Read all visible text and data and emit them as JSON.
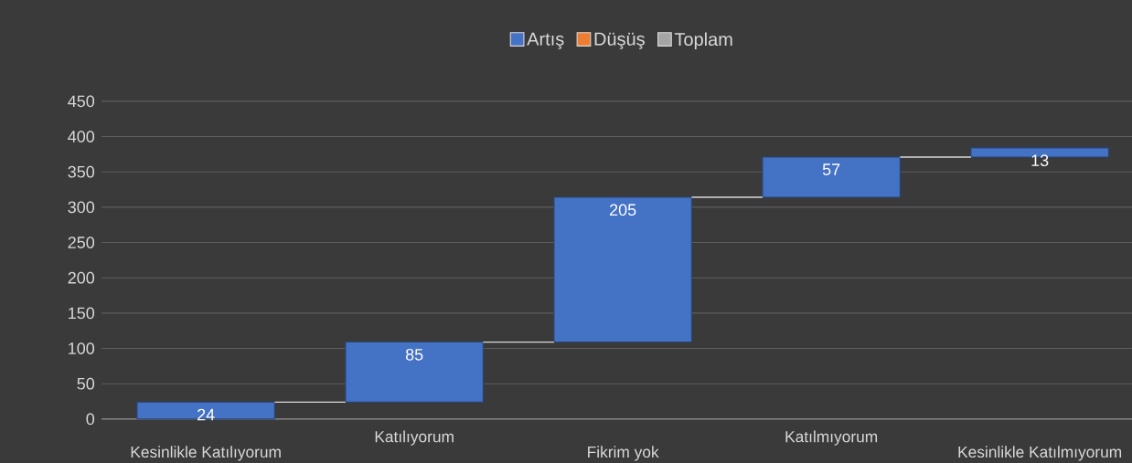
{
  "chart_data": {
    "type": "bar",
    "categories": [
      "Kesinlikle Katılıyorum",
      "Katılıyorum",
      "Fikrim yok",
      "Katılmıyorum",
      "Kesinlikle Katılmıyorum"
    ],
    "series": [
      {
        "name": "Artış",
        "color": "#4472c4",
        "values": [
          24,
          85,
          205,
          57,
          13
        ],
        "base": [
          0,
          24,
          109,
          314,
          371
        ]
      },
      {
        "name": "Düşüş",
        "color": "#ed7d31",
        "values": [
          null,
          null,
          null,
          null,
          null
        ]
      },
      {
        "name": "Toplam",
        "color": "#a5a5a5",
        "values": [
          null,
          null,
          null,
          null,
          null
        ]
      }
    ],
    "ylim": [
      0,
      450
    ],
    "yticks": [
      0,
      50,
      100,
      150,
      200,
      250,
      300,
      350,
      400,
      450
    ],
    "grid": "y",
    "legend": "top",
    "data_labels": true
  }
}
